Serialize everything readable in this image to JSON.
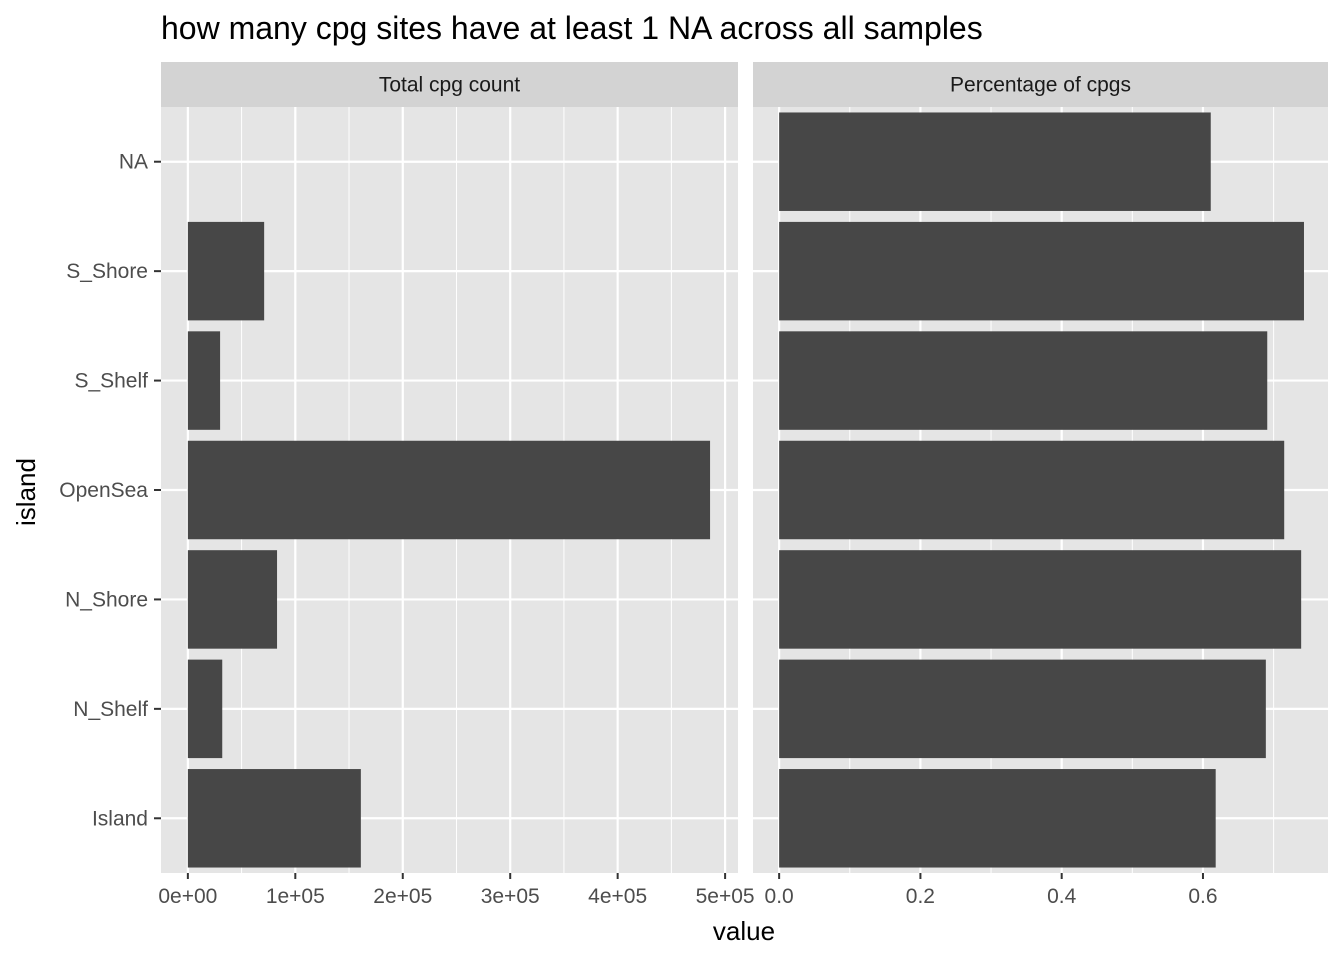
{
  "chart_data": {
    "type": "bar",
    "orientation": "horizontal",
    "title": "how many cpg sites have at least 1 NA across all samples",
    "xlabel": "value",
    "ylabel": "island",
    "categories": [
      "Island",
      "N_Shelf",
      "N_Shore",
      "OpenSea",
      "S_Shelf",
      "S_Shore",
      "NA"
    ],
    "grid": true,
    "legend": "none",
    "bar_color": "#474747",
    "panel_color": "#e5e5e5",
    "strip_color": "#d3d3d3",
    "facets": [
      {
        "label": "Total cpg count",
        "xlim": [
          -25000,
          512000
        ],
        "x_ticks": [
          0,
          100000,
          200000,
          300000,
          400000,
          500000
        ],
        "x_tick_labels": [
          "0e+00",
          "1e+05",
          "2e+05",
          "3e+05",
          "4e+05",
          "5e+05"
        ],
        "values": [
          161000,
          32000,
          83000,
          486000,
          30000,
          71000,
          0
        ]
      },
      {
        "label": "Percentage of cpgs",
        "xlim": [
          -0.037,
          0.777
        ],
        "x_ticks": [
          0.0,
          0.2,
          0.4,
          0.6
        ],
        "x_tick_labels": [
          "0.0",
          "0.2",
          "0.4",
          "0.6"
        ],
        "values": [
          0.618,
          0.689,
          0.739,
          0.715,
          0.691,
          0.743,
          0.611
        ]
      }
    ]
  }
}
